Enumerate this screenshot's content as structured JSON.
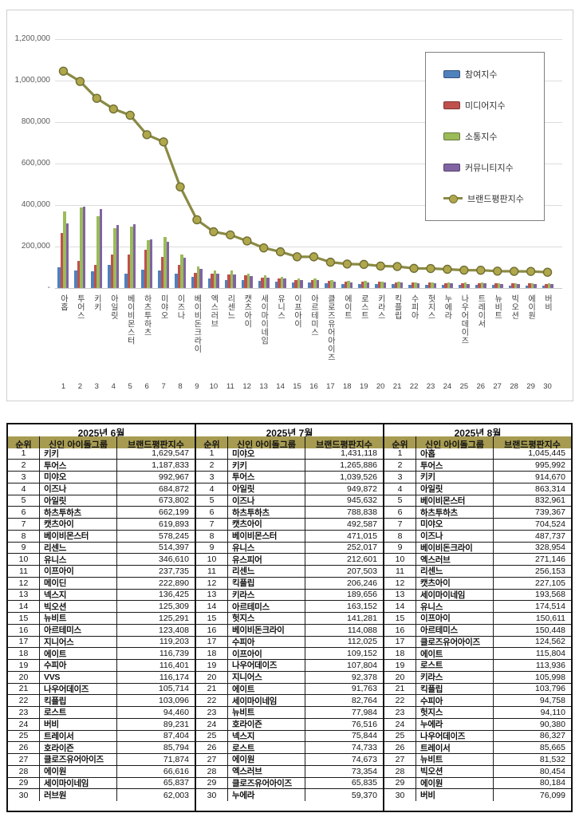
{
  "chart": {
    "y_ticks": [
      {
        "v": 1200000,
        "label": "1,200,000"
      },
      {
        "v": 1000000,
        "label": "1,000,000"
      },
      {
        "v": 800000,
        "label": "800,000"
      },
      {
        "v": 600000,
        "label": "600,000"
      },
      {
        "v": 400000,
        "label": "400,000"
      },
      {
        "v": 200000,
        "label": "200,000"
      },
      {
        "v": 0,
        "label": "-"
      }
    ],
    "legend_items": [
      "참여지수",
      "미디어지수",
      "소통지수",
      "커뮤니티지수",
      "브랜드평판지수"
    ]
  },
  "chart_data": {
    "type": "bar",
    "note_type": "grouped bars with overlaid line series",
    "title": "",
    "xlabel": "",
    "ylabel": "",
    "ylim": [
      0,
      1200000
    ],
    "grid": true,
    "legend_position": "right-overlay",
    "categories": [
      "아홉",
      "투어스",
      "키키",
      "아일릿",
      "베이비몬스터",
      "하츠투하츠",
      "미야오",
      "이즈나",
      "베이비돈크라이",
      "엑스러브",
      "리센느",
      "캣츠아이",
      "세이마이네임",
      "유니스",
      "이프아이",
      "아르테미스",
      "클로즈유어아이즈",
      "에이트",
      "로스트",
      "키라스",
      "킥플립",
      "수피아",
      "헛지스",
      "누에라",
      "나우어데이즈",
      "트레이서",
      "뉴비트",
      "빅오션",
      "에이원",
      "버비"
    ],
    "x_rank_labels": [
      "1",
      "2",
      "3",
      "4",
      "5",
      "6",
      "7",
      "8",
      "9",
      "10",
      "11",
      "12",
      "13",
      "14",
      "15",
      "16",
      "17",
      "18",
      "19",
      "20",
      "21",
      "22",
      "23",
      "24",
      "25",
      "26",
      "27",
      "28",
      "29",
      "30"
    ],
    "series": [
      {
        "name": "참여지수",
        "kind": "bar",
        "color": "#4f81bd",
        "values": [
          100000,
          85000,
          80000,
          110000,
          70000,
          90000,
          85000,
          70000,
          55000,
          45000,
          40000,
          40000,
          35000,
          30000,
          28000,
          28000,
          22000,
          20000,
          20000,
          18000,
          18000,
          16000,
          16000,
          15000,
          15000,
          14000,
          14000,
          13000,
          13000,
          13000
        ]
      },
      {
        "name": "미디어지수",
        "kind": "bar",
        "color": "#c0504d",
        "values": [
          265000,
          130000,
          110000,
          160000,
          160000,
          185000,
          150000,
          110000,
          75000,
          70000,
          65000,
          60000,
          50000,
          45000,
          40000,
          40000,
          34000,
          32000,
          31000,
          30000,
          29000,
          27000,
          26000,
          25000,
          24000,
          24000,
          23000,
          22000,
          22000,
          21000
        ]
      },
      {
        "name": "소통지수",
        "kind": "bar",
        "color": "#9bbb59",
        "values": [
          370000,
          390000,
          345000,
          290000,
          295000,
          230000,
          245000,
          160000,
          105000,
          85000,
          85000,
          70000,
          60000,
          55000,
          45000,
          45000,
          38000,
          35000,
          35000,
          32000,
          31000,
          29000,
          29000,
          28000,
          26000,
          26000,
          25000,
          25000,
          25000,
          23000
        ]
      },
      {
        "name": "커뮤니티지수",
        "kind": "bar",
        "color": "#8064a2",
        "values": [
          310000,
          391000,
          380000,
          303000,
          308000,
          234000,
          225000,
          148000,
          94000,
          71000,
          66000,
          57000,
          49000,
          45000,
          38000,
          37000,
          31000,
          29000,
          28000,
          26000,
          26000,
          23000,
          23000,
          22000,
          21000,
          22000,
          20000,
          20000,
          20000,
          19000
        ]
      },
      {
        "name": "브랜드평판지수",
        "kind": "line",
        "color": "#8a8a45",
        "marker_fill": "#b0a74c",
        "marker_stroke": "#6f6f33",
        "values": [
          1045445,
          995992,
          914670,
          863314,
          832961,
          739367,
          704524,
          487737,
          328954,
          271146,
          256153,
          227105,
          193568,
          174514,
          150611,
          150448,
          124562,
          115804,
          113936,
          105998,
          103796,
          94758,
          94110,
          90380,
          86327,
          85665,
          81532,
          80454,
          80184,
          76099
        ]
      }
    ]
  },
  "table": {
    "columns": [
      "순위",
      "신인 아이돌그룹",
      "브랜드평판지수"
    ],
    "sections": [
      {
        "month": "2025년 6월",
        "rows": [
          [
            "1",
            "키키",
            "1,629,547"
          ],
          [
            "2",
            "투어스",
            "1,187,833"
          ],
          [
            "3",
            "미야오",
            "992,967"
          ],
          [
            "4",
            "이즈나",
            "684,872"
          ],
          [
            "5",
            "아일릿",
            "673,802"
          ],
          [
            "6",
            "하츠투하츠",
            "662,199"
          ],
          [
            "7",
            "캣츠아이",
            "619,893"
          ],
          [
            "8",
            "베이비몬스터",
            "578,245"
          ],
          [
            "9",
            "리센느",
            "514,397"
          ],
          [
            "10",
            "유니스",
            "346,610"
          ],
          [
            "11",
            "이프아이",
            "237,735"
          ],
          [
            "12",
            "메이딘",
            "222,890"
          ],
          [
            "13",
            "넥스지",
            "136,425"
          ],
          [
            "14",
            "빅오션",
            "125,309"
          ],
          [
            "15",
            "뉴비트",
            "125,291"
          ],
          [
            "16",
            "아르테미스",
            "123,408"
          ],
          [
            "17",
            "지니어스",
            "119,203"
          ],
          [
            "18",
            "에이트",
            "116,739"
          ],
          [
            "19",
            "수피아",
            "116,401"
          ],
          [
            "20",
            "VVS",
            "116,174"
          ],
          [
            "21",
            "나우어데이즈",
            "105,714"
          ],
          [
            "22",
            "킥플립",
            "103,096"
          ],
          [
            "23",
            "로스트",
            "94,460"
          ],
          [
            "24",
            "버비",
            "89,231"
          ],
          [
            "25",
            "트레이서",
            "87,404"
          ],
          [
            "26",
            "호라이즌",
            "85,794"
          ],
          [
            "27",
            "클로즈유어아이즈",
            "71,874"
          ],
          [
            "28",
            "에이원",
            "66,616"
          ],
          [
            "29",
            "세이마이네임",
            "65,837"
          ],
          [
            "30",
            "러브원",
            "62,003"
          ]
        ]
      },
      {
        "month": "2025년 7월",
        "rows": [
          [
            "1",
            "미야오",
            "1,431,118"
          ],
          [
            "2",
            "키키",
            "1,265,886"
          ],
          [
            "3",
            "투어스",
            "1,039,526"
          ],
          [
            "4",
            "아일릿",
            "949,872"
          ],
          [
            "5",
            "이즈나",
            "945,632"
          ],
          [
            "6",
            "하츠투하츠",
            "788,838"
          ],
          [
            "7",
            "캣츠아이",
            "492,587"
          ],
          [
            "8",
            "베이비몬스터",
            "471,015"
          ],
          [
            "9",
            "유니스",
            "252,017"
          ],
          [
            "10",
            "유스피어",
            "212,601"
          ],
          [
            "11",
            "리센느",
            "207,503"
          ],
          [
            "12",
            "킥플립",
            "206,246"
          ],
          [
            "13",
            "키라스",
            "189,656"
          ],
          [
            "14",
            "아르테미스",
            "163,152"
          ],
          [
            "15",
            "헛지스",
            "141,281"
          ],
          [
            "16",
            "베이비돈크라이",
            "114,088"
          ],
          [
            "17",
            "수피아",
            "112,025"
          ],
          [
            "18",
            "이프아이",
            "109,152"
          ],
          [
            "19",
            "나우어데이즈",
            "107,804"
          ],
          [
            "20",
            "지니어스",
            "92,378"
          ],
          [
            "21",
            "에이트",
            "91,763"
          ],
          [
            "22",
            "세이마이네임",
            "82,764"
          ],
          [
            "23",
            "뉴비트",
            "77,984"
          ],
          [
            "24",
            "호라이즌",
            "76,516"
          ],
          [
            "25",
            "넥스지",
            "75,844"
          ],
          [
            "26",
            "로스트",
            "74,733"
          ],
          [
            "27",
            "에이원",
            "74,673"
          ],
          [
            "28",
            "엑스러브",
            "73,354"
          ],
          [
            "29",
            "클로즈유어아이즈",
            "65,835"
          ],
          [
            "30",
            "누에라",
            "59,370"
          ]
        ]
      },
      {
        "month": "2025년 8월",
        "rows": [
          [
            "1",
            "아홉",
            "1,045,445"
          ],
          [
            "2",
            "투어스",
            "995,992"
          ],
          [
            "3",
            "키키",
            "914,670"
          ],
          [
            "4",
            "아일릿",
            "863,314"
          ],
          [
            "5",
            "베이비몬스터",
            "832,961"
          ],
          [
            "6",
            "하츠투하츠",
            "739,367"
          ],
          [
            "7",
            "미야오",
            "704,524"
          ],
          [
            "8",
            "이즈나",
            "487,737"
          ],
          [
            "9",
            "베이비돈크라이",
            "328,954"
          ],
          [
            "10",
            "엑스러브",
            "271,146"
          ],
          [
            "11",
            "리센느",
            "256,153"
          ],
          [
            "12",
            "캣츠아이",
            "227,105"
          ],
          [
            "13",
            "세이마이네임",
            "193,568"
          ],
          [
            "14",
            "유니스",
            "174,514"
          ],
          [
            "15",
            "이프아이",
            "150,611"
          ],
          [
            "16",
            "아르테미스",
            "150,448"
          ],
          [
            "17",
            "클로즈유어아이즈",
            "124,562"
          ],
          [
            "18",
            "에이트",
            "115,804"
          ],
          [
            "19",
            "로스트",
            "113,936"
          ],
          [
            "20",
            "키라스",
            "105,998"
          ],
          [
            "21",
            "킥플립",
            "103,796"
          ],
          [
            "22",
            "수피아",
            "94,758"
          ],
          [
            "23",
            "헛지스",
            "94,110"
          ],
          [
            "24",
            "누에라",
            "90,380"
          ],
          [
            "25",
            "나우어데이즈",
            "86,327"
          ],
          [
            "26",
            "트레이서",
            "85,665"
          ],
          [
            "27",
            "뉴비트",
            "81,532"
          ],
          [
            "28",
            "빅오션",
            "80,454"
          ],
          [
            "29",
            "에이원",
            "80,184"
          ],
          [
            "30",
            "버비",
            "76,099"
          ]
        ]
      }
    ]
  }
}
